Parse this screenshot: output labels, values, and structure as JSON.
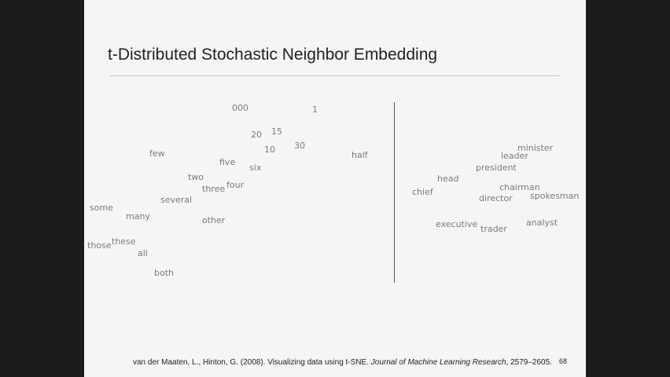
{
  "slide": {
    "title": "t-Distributed Stochastic Neighbor Embedding",
    "page_number": "68",
    "citation": {
      "authors": "van der Maaten, L., Hinton, G. (2008). Visualizing data using t-SNE. ",
      "journal": "Journal of Machine Learning Research",
      "pages": ", 2579–2605."
    }
  },
  "embedding": {
    "left_cluster": [
      "000",
      "1",
      "20",
      "15",
      "30",
      "10",
      "half",
      "few",
      "five",
      "six",
      "two",
      "four",
      "three",
      "several",
      "some",
      "many",
      "other",
      "those",
      "these",
      "all",
      "both"
    ],
    "right_cluster": [
      "minister",
      "leader",
      "president",
      "head",
      "chairman",
      "chief",
      "director",
      "spokesman",
      "executive",
      "trader",
      "analyst"
    ]
  }
}
